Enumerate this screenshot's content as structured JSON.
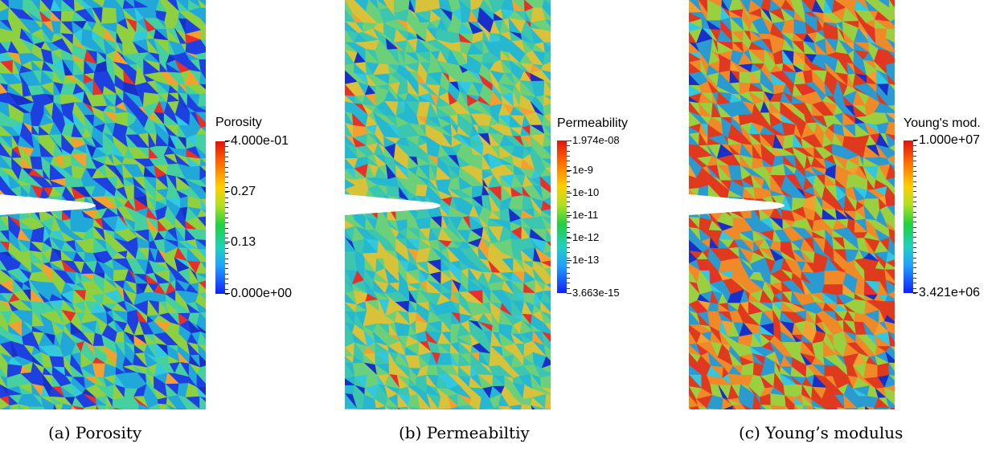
{
  "figure": {
    "panels": [
      {
        "caption": "(a) Porosity",
        "colorbar": {
          "title": "Porosity",
          "max_label": "4.000e-01",
          "min_label": "0.000e+00",
          "ticks": [
            "0.27",
            "0.13"
          ],
          "colormap": "rainbow-blue-to-red",
          "dominant_colors": [
            "#1e40e0",
            "#21a8d8",
            "#46d0a0",
            "#8fd040"
          ]
        }
      },
      {
        "caption": "(b) Permeabiltiy",
        "colorbar": {
          "title": "Permeability",
          "max_label": "1.974e-08",
          "min_label": "3.663e-15",
          "ticks": [
            "1e-9",
            "1e-10",
            "1e-11",
            "1e-12",
            "1e-13"
          ],
          "scale": "log",
          "colormap": "rainbow-blue-to-red",
          "dominant_colors": [
            "#26b8d0",
            "#3cc6b0",
            "#6cd07a",
            "#d8c23a"
          ]
        }
      },
      {
        "caption": "(c) Young’s modulus",
        "colorbar": {
          "title": "Young's mod.",
          "max_label": "1.000e+07",
          "min_label": "3.421e+06",
          "ticks": [],
          "colormap": "rainbow-blue-to-red",
          "dominant_colors": [
            "#e03a1e",
            "#f08a28",
            "#9ad040",
            "#2a9ad0"
          ]
        }
      }
    ]
  }
}
